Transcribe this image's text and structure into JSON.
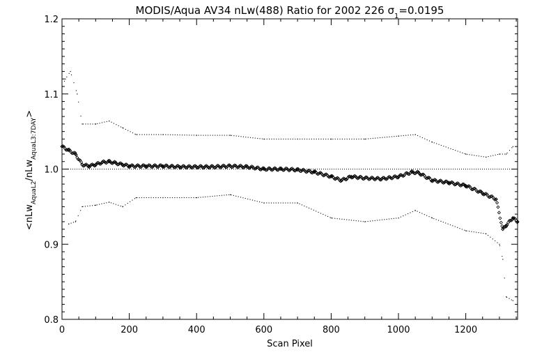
{
  "chart_data": {
    "type": "scatter",
    "title": "MODIS/Aqua AV34 nLw(488) Ratio for 2002 226 σ1=0.0195",
    "title_parts": {
      "prefix": "MODIS/Aqua AV34 nLw(488) Ratio for 2002 226 ",
      "sigma": "σ",
      "sigma_sub": "1",
      "suffix": "=0.0195"
    },
    "xlabel": "Scan Pixel",
    "ylabel": "<nLwAquaL2/nLwAquaL3:7DAY>",
    "ylabel_parts": {
      "open": "<nLw",
      "sub1": "AquaL2",
      "mid": "/nLw",
      "sub2": "AquaL3:7DAY",
      "close": ">"
    },
    "xlim": [
      0,
      1354
    ],
    "ylim": [
      0.8,
      1.2
    ],
    "xticks": [
      0,
      200,
      400,
      600,
      800,
      1000,
      1200
    ],
    "xtick_labels": [
      "0",
      "200",
      "400",
      "600",
      "800",
      "1000",
      "1200"
    ],
    "yticks": [
      0.8,
      0.9,
      1.0,
      1.1,
      1.2
    ],
    "ytick_labels": [
      "0.8",
      "0.9",
      "1.0",
      "1.1",
      "1.2"
    ],
    "reference_line": 1.0,
    "grid": false,
    "series": [
      {
        "role": "mean",
        "marker": "diamond",
        "x": [
          0,
          20,
          40,
          60,
          80,
          100,
          120,
          140,
          160,
          180,
          200,
          250,
          300,
          350,
          400,
          450,
          500,
          550,
          600,
          650,
          700,
          750,
          800,
          830,
          860,
          900,
          950,
          1000,
          1040,
          1060,
          1100,
          1150,
          1200,
          1250,
          1290,
          1310,
          1320,
          1340,
          1354
        ],
        "y": [
          1.03,
          1.025,
          1.02,
          1.006,
          1.004,
          1.006,
          1.009,
          1.01,
          1.008,
          1.006,
          1.004,
          1.004,
          1.004,
          1.003,
          1.003,
          1.003,
          1.004,
          1.003,
          1.0,
          1.0,
          0.999,
          0.996,
          0.99,
          0.985,
          0.99,
          0.988,
          0.987,
          0.99,
          0.996,
          0.995,
          0.985,
          0.982,
          0.978,
          0.968,
          0.96,
          0.92,
          0.925,
          0.935,
          0.93
        ]
      },
      {
        "role": "upper",
        "marker": "dot",
        "x": [
          0,
          10,
          25,
          45,
          60,
          100,
          140,
          180,
          220,
          300,
          400,
          500,
          600,
          700,
          800,
          900,
          1000,
          1050,
          1100,
          1200,
          1260,
          1300,
          1320,
          1340
        ],
        "y": [
          1.11,
          1.12,
          1.13,
          1.1,
          1.06,
          1.06,
          1.064,
          1.055,
          1.046,
          1.046,
          1.045,
          1.045,
          1.04,
          1.04,
          1.04,
          1.04,
          1.044,
          1.046,
          1.036,
          1.02,
          1.016,
          1.02,
          1.02,
          1.03
        ]
      },
      {
        "role": "lower",
        "marker": "dot",
        "x": [
          20,
          40,
          60,
          100,
          140,
          180,
          220,
          300,
          400,
          500,
          600,
          700,
          800,
          900,
          1000,
          1050,
          1100,
          1200,
          1260,
          1300,
          1310,
          1320,
          1340
        ],
        "y": [
          0.927,
          0.93,
          0.95,
          0.952,
          0.956,
          0.95,
          0.962,
          0.962,
          0.962,
          0.966,
          0.955,
          0.955,
          0.935,
          0.93,
          0.935,
          0.945,
          0.935,
          0.918,
          0.914,
          0.9,
          0.88,
          0.83,
          0.825
        ]
      }
    ]
  }
}
